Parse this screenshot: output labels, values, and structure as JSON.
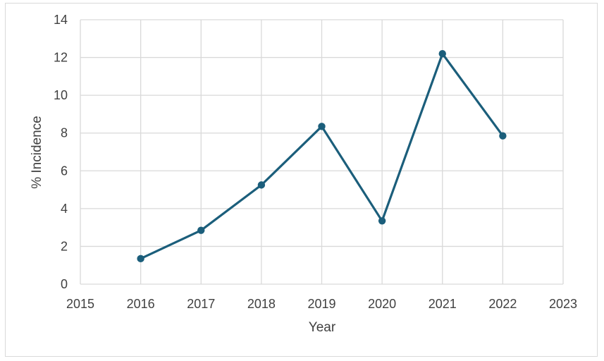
{
  "chart_data": {
    "type": "scatter",
    "title": "",
    "xlabel": "Year",
    "ylabel": "% Incidence",
    "xlim": [
      2015,
      2023
    ],
    "ylim": [
      0,
      14
    ],
    "x_ticks": [
      "2015",
      "2016",
      "2017",
      "2018",
      "2019",
      "2020",
      "2021",
      "2022",
      "2023"
    ],
    "y_ticks": [
      "0",
      "2",
      "4",
      "6",
      "8",
      "10",
      "12",
      "14"
    ],
    "grid": true,
    "legend": "none",
    "series": [
      {
        "color": "#1b5e7b",
        "points": [
          {
            "x": 2016,
            "y": 1.35
          },
          {
            "x": 2017,
            "y": 2.85
          },
          {
            "x": 2018,
            "y": 5.25
          },
          {
            "x": 2019,
            "y": 8.35
          },
          {
            "x": 2020,
            "y": 3.35
          },
          {
            "x": 2021,
            "y": 12.2
          },
          {
            "x": 2022,
            "y": 7.85
          }
        ]
      }
    ]
  }
}
